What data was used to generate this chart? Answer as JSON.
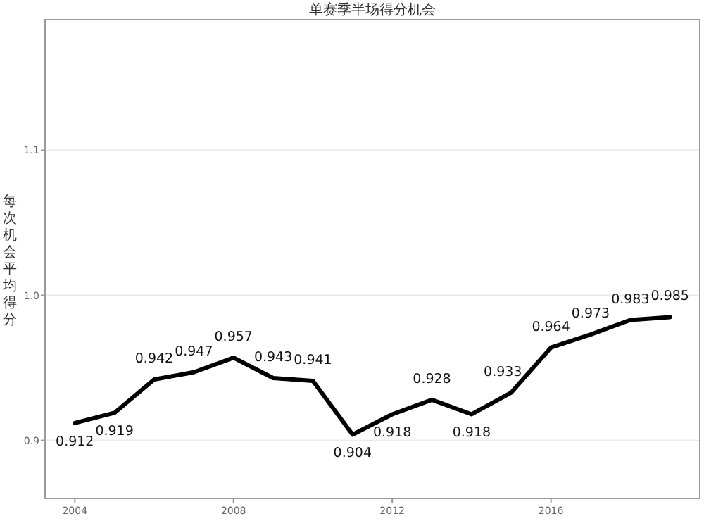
{
  "chart_data": {
    "type": "line",
    "title": "单赛季半场得分机会",
    "ylabel": "每次机会平均得分",
    "x": [
      2004,
      2005,
      2006,
      2007,
      2008,
      2009,
      2010,
      2011,
      2012,
      2013,
      2014,
      2015,
      2016,
      2017,
      2018,
      2019
    ],
    "series": [
      {
        "color": "#000000",
        "values": [
          0.912,
          0.919,
          0.942,
          0.947,
          0.957,
          0.943,
          0.941,
          0.904,
          0.918,
          0.928,
          0.918,
          0.933,
          0.964,
          0.973,
          0.983,
          0.985
        ]
      }
    ],
    "xlim": [
      2003.25,
      2019.75
    ],
    "xticks": [
      2004,
      2008,
      2012,
      2016
    ],
    "ylim": [
      0.86,
      1.19
    ],
    "yticks": [
      0.9,
      {
        "value": 1.0,
        "label": "1.0"
      },
      1.1
    ],
    "grid": "y",
    "data_labels": true,
    "marker": "none",
    "line_style": "solid"
  }
}
